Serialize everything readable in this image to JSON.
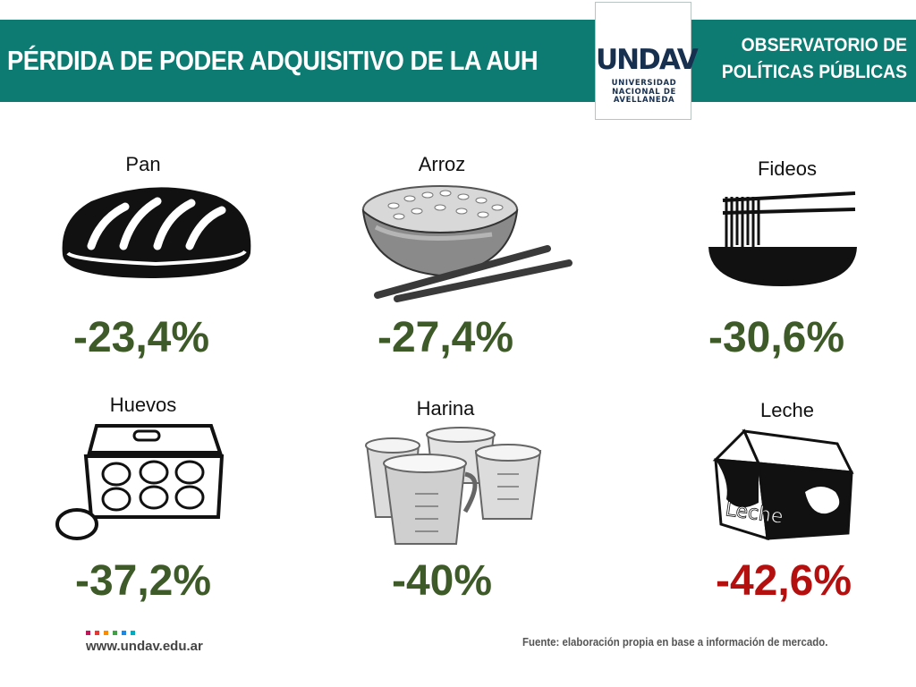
{
  "header": {
    "title": "PÉRDIDA DE PODER ADQUISITIVO DE LA AUH",
    "observatorio_line1": "OBSERVATORIO DE",
    "observatorio_line2": "POLÍTICAS PÚBLICAS",
    "logo_text": "UNDAV",
    "logo_sub1": "UNIVERSIDAD",
    "logo_sub2": "NACIONAL DE",
    "logo_sub3": "AVELLANEDA",
    "bg_color": "#0e7b73"
  },
  "items": [
    {
      "label": "Pan",
      "value": "-23,4%",
      "icon": "bread-icon",
      "color": "#3e5a29"
    },
    {
      "label": "Arroz",
      "value": "-27,4%",
      "icon": "rice-bowl-icon",
      "color": "#3e5a29"
    },
    {
      "label": "Fideos",
      "value": "-30,6%",
      "icon": "noodles-icon",
      "color": "#3e5a29"
    },
    {
      "label": "Huevos",
      "value": "-37,2%",
      "icon": "egg-carton-icon",
      "color": "#3e5a29"
    },
    {
      "label": "Harina",
      "value": "-40%",
      "icon": "flour-cups-icon",
      "color": "#3e5a29"
    },
    {
      "label": "Leche",
      "value": "-42,6%",
      "icon": "milk-carton-icon",
      "color": "#b41010"
    }
  ],
  "milk_carton_text": "Leche",
  "footer": {
    "website": "www.undav.edu.ar",
    "source": "Fuente: elaboración propia en base a información de mercado.",
    "square_colors": [
      "#c2185b",
      "#e53935",
      "#fb8c00",
      "#43a047",
      "#1e88e5",
      "#00acc1"
    ]
  }
}
